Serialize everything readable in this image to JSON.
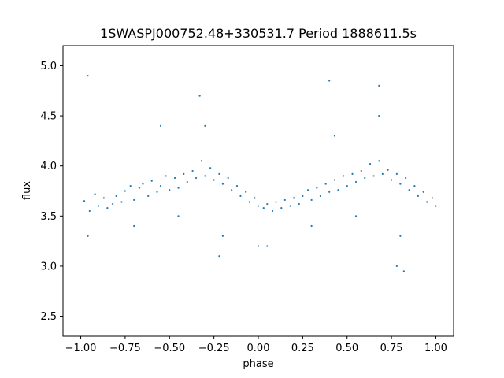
{
  "chart_data": {
    "type": "scatter",
    "title": "1SWASPJ000752.48+330531.7 Period 1888611.5s",
    "xlabel": "phase",
    "ylabel": "flux",
    "xlim": [
      -1.1,
      1.1
    ],
    "ylim": [
      2.3,
      5.2
    ],
    "xticks": [
      -1.0,
      -0.75,
      -0.5,
      -0.25,
      0.0,
      0.25,
      0.5,
      0.75,
      1.0
    ],
    "xtick_labels": [
      "−1.00",
      "−0.75",
      "−0.50",
      "−0.25",
      "0.00",
      "0.25",
      "0.50",
      "0.75",
      "1.00"
    ],
    "yticks": [
      2.5,
      3.0,
      3.5,
      4.0,
      4.5,
      5.0
    ],
    "ytick_labels": [
      "2.5",
      "3.0",
      "3.5",
      "4.0",
      "4.5",
      "5.0"
    ],
    "grid": false,
    "marker_color": "#1f77b4",
    "series": [
      {
        "points": [
          [
            -0.98,
            3.65
          ],
          [
            -0.95,
            3.55
          ],
          [
            -0.92,
            3.72
          ],
          [
            -0.9,
            3.6
          ],
          [
            -0.87,
            3.68
          ],
          [
            -0.85,
            3.58
          ],
          [
            -0.82,
            3.62
          ],
          [
            -0.8,
            3.7
          ],
          [
            -0.77,
            3.64
          ],
          [
            -0.75,
            3.75
          ],
          [
            -0.72,
            3.8
          ],
          [
            -0.7,
            3.66
          ],
          [
            -0.67,
            3.78
          ],
          [
            -0.65,
            3.82
          ],
          [
            -0.62,
            3.7
          ],
          [
            -0.6,
            3.85
          ],
          [
            -0.57,
            3.74
          ],
          [
            -0.55,
            3.8
          ],
          [
            -0.52,
            3.9
          ],
          [
            -0.5,
            3.76
          ],
          [
            -0.47,
            3.88
          ],
          [
            -0.45,
            3.78
          ],
          [
            -0.42,
            3.92
          ],
          [
            -0.4,
            3.84
          ],
          [
            -0.37,
            3.95
          ],
          [
            -0.35,
            3.88
          ],
          [
            -0.32,
            4.05
          ],
          [
            -0.3,
            3.9
          ],
          [
            -0.27,
            3.98
          ],
          [
            -0.25,
            3.86
          ],
          [
            -0.22,
            3.92
          ],
          [
            -0.2,
            3.82
          ],
          [
            -0.17,
            3.88
          ],
          [
            -0.15,
            3.76
          ],
          [
            -0.12,
            3.8
          ],
          [
            -0.1,
            3.7
          ],
          [
            -0.07,
            3.74
          ],
          [
            -0.05,
            3.64
          ],
          [
            -0.02,
            3.68
          ],
          [
            0.0,
            3.6
          ],
          [
            0.03,
            3.58
          ],
          [
            0.05,
            3.62
          ],
          [
            0.08,
            3.55
          ],
          [
            0.1,
            3.64
          ],
          [
            0.13,
            3.58
          ],
          [
            0.15,
            3.66
          ],
          [
            0.18,
            3.6
          ],
          [
            0.2,
            3.68
          ],
          [
            0.23,
            3.62
          ],
          [
            0.25,
            3.7
          ],
          [
            0.28,
            3.76
          ],
          [
            0.3,
            3.66
          ],
          [
            0.33,
            3.78
          ],
          [
            0.35,
            3.7
          ],
          [
            0.38,
            3.82
          ],
          [
            0.4,
            3.74
          ],
          [
            0.43,
            3.86
          ],
          [
            0.45,
            3.76
          ],
          [
            0.48,
            3.9
          ],
          [
            0.5,
            3.8
          ],
          [
            0.53,
            3.92
          ],
          [
            0.55,
            3.84
          ],
          [
            0.58,
            3.95
          ],
          [
            0.6,
            3.88
          ],
          [
            0.63,
            4.02
          ],
          [
            0.65,
            3.9
          ],
          [
            0.68,
            4.05
          ],
          [
            0.7,
            3.92
          ],
          [
            0.73,
            3.96
          ],
          [
            0.75,
            3.86
          ],
          [
            0.78,
            3.92
          ],
          [
            0.8,
            3.82
          ],
          [
            0.83,
            3.88
          ],
          [
            0.85,
            3.76
          ],
          [
            0.88,
            3.8
          ],
          [
            0.9,
            3.7
          ],
          [
            0.93,
            3.74
          ],
          [
            0.95,
            3.64
          ],
          [
            0.98,
            3.68
          ],
          [
            1.0,
            3.6
          ],
          [
            -0.96,
            3.3
          ],
          [
            -0.7,
            3.4
          ],
          [
            -0.45,
            3.5
          ],
          [
            -0.2,
            3.3
          ],
          [
            0.05,
            3.2
          ],
          [
            0.3,
            3.4
          ],
          [
            0.55,
            3.5
          ],
          [
            0.8,
            3.3
          ],
          [
            -0.3,
            4.4
          ],
          [
            0.68,
            4.5
          ],
          [
            -0.55,
            4.4
          ],
          [
            0.43,
            4.3
          ],
          [
            0.78,
            3.0
          ],
          [
            -0.22,
            3.1
          ],
          [
            0.0,
            3.2
          ],
          [
            -0.33,
            4.7
          ],
          [
            0.68,
            4.8
          ],
          [
            -0.96,
            4.9
          ],
          [
            0.4,
            4.85
          ],
          [
            0.82,
            2.95
          ]
        ]
      }
    ]
  }
}
